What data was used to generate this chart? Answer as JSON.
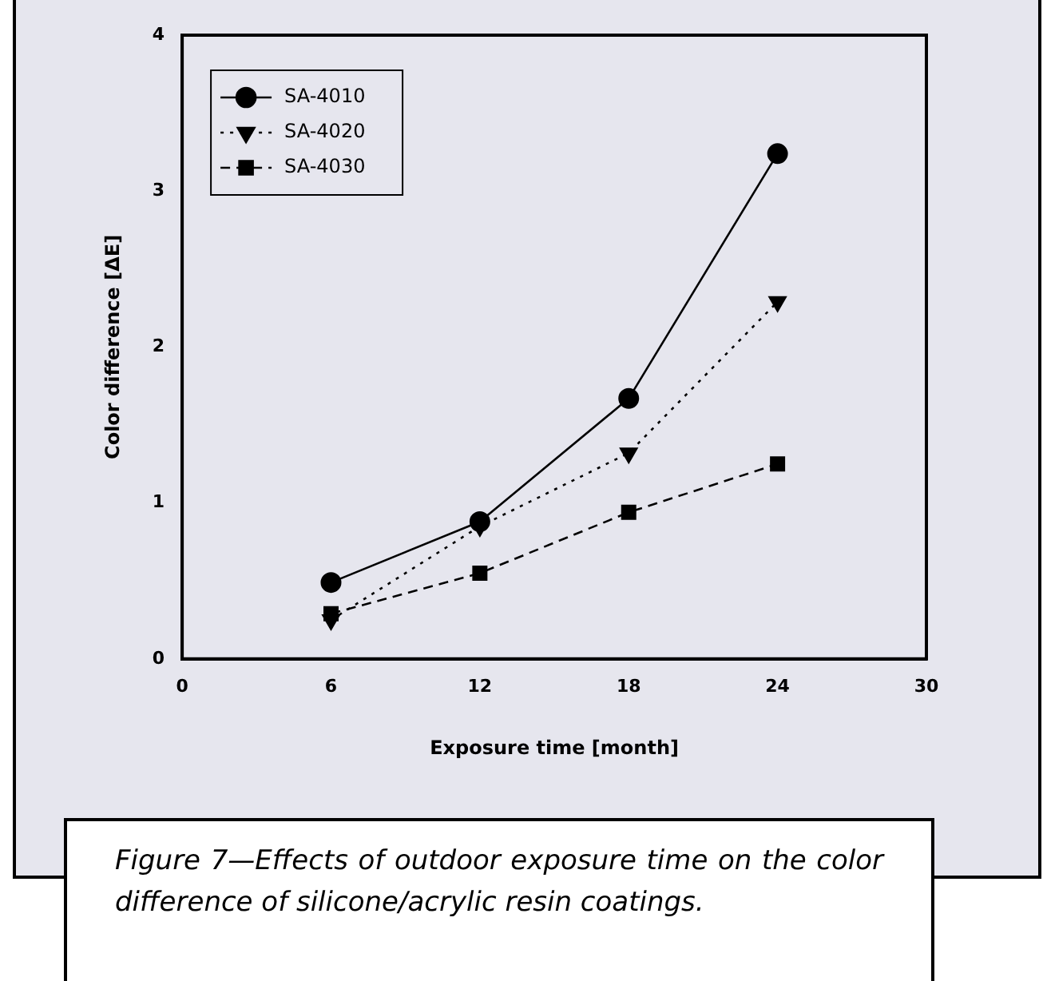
{
  "chart_data": {
    "type": "line",
    "xlabel": "Exposure time [month]",
    "ylabel": "Color difference [ΔE]",
    "x": [
      6,
      12,
      18,
      24
    ],
    "series": [
      {
        "name": "SA-4010",
        "color": "#000000",
        "values": [
          0.49,
          0.88,
          1.67,
          3.24
        ],
        "marker": "circle",
        "line_style": "solid"
      },
      {
        "name": "SA-4020",
        "color": "#000000",
        "values": [
          0.25,
          0.85,
          1.32,
          2.29
        ],
        "marker": "triangle",
        "line_style": "dotted"
      },
      {
        "name": "SA-4030",
        "color": "#000000",
        "values": [
          0.29,
          0.55,
          0.94,
          1.25
        ],
        "marker": "square",
        "line_style": "dashed"
      }
    ],
    "xlim": [
      0,
      30
    ],
    "xticks": [
      0,
      6,
      12,
      18,
      24,
      30
    ],
    "ylim": [
      0,
      4
    ],
    "yticks": [
      0,
      1,
      2,
      3,
      4
    ],
    "grid": false,
    "legend": "top left",
    "annotations": [
      "Figure 7—Effects of outdoor exposure time on the color difference of silicone/acrylic resin coatings."
    ]
  }
}
